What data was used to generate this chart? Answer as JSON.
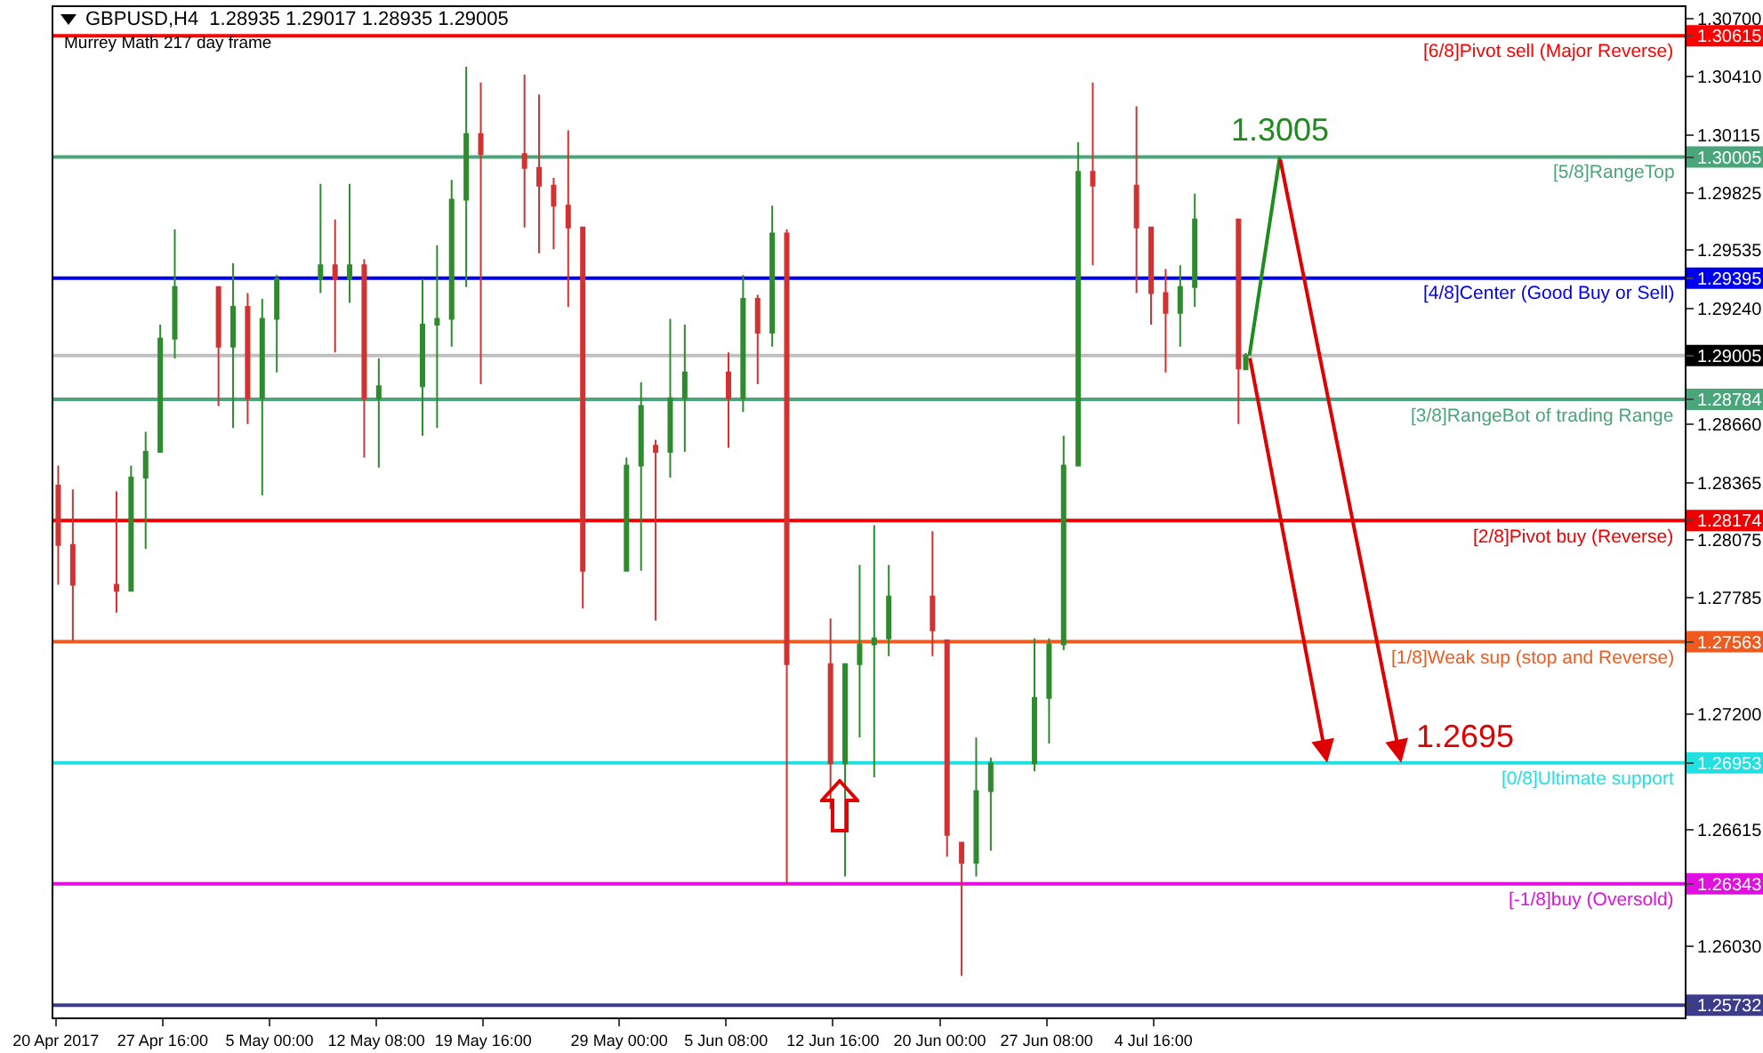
{
  "chart_data": {
    "type": "candlestick",
    "title": "GBPUSD,H4  1.28935 1.29017 1.28935 1.29005",
    "subtitle": "Murrey Math 217 day frame",
    "x": [
      "2017-04-20T12:00",
      "2017-04-21T12:00",
      "2017-04-24T12:00",
      "2017-04-25T12:00",
      "2017-04-26T12:00",
      "2017-04-27T12:00",
      "2017-04-28T12:00",
      "2017-05-01T12:00",
      "2017-05-02T12:00",
      "2017-05-03T12:00",
      "2017-05-04T12:00",
      "2017-05-05T12:00",
      "2017-05-08T12:00",
      "2017-05-09T12:00",
      "2017-05-10T12:00",
      "2017-05-11T12:00",
      "2017-05-12T12:00",
      "2017-05-15T12:00",
      "2017-05-16T12:00",
      "2017-05-17T12:00",
      "2017-05-18T12:00",
      "2017-05-19T12:00",
      "2017-05-22T12:00",
      "2017-05-23T12:00",
      "2017-05-24T12:00",
      "2017-05-25T12:00",
      "2017-05-26T12:00",
      "2017-05-29T12:00",
      "2017-05-30T12:00",
      "2017-05-31T12:00",
      "2017-06-01T12:00",
      "2017-06-02T12:00",
      "2017-06-05T12:00",
      "2017-06-06T12:00",
      "2017-06-07T12:00",
      "2017-06-08T12:00",
      "2017-06-09T12:00",
      "2017-06-12T12:00",
      "2017-06-13T12:00",
      "2017-06-14T12:00",
      "2017-06-15T12:00",
      "2017-06-16T12:00",
      "2017-06-19T12:00",
      "2017-06-20T12:00",
      "2017-06-21T12:00",
      "2017-06-22T12:00",
      "2017-06-23T12:00",
      "2017-06-26T12:00",
      "2017-06-27T12:00",
      "2017-06-28T12:00",
      "2017-06-29T12:00",
      "2017-06-30T12:00",
      "2017-07-03T12:00",
      "2017-07-04T12:00",
      "2017-07-05T12:00",
      "2017-07-06T12:00",
      "2017-07-07T12:00",
      "2017-07-10T12:00",
      "2017-07-11T00:00"
    ],
    "ohlc": [
      [
        1.2835,
        1.2845,
        1.2785,
        1.2805
      ],
      [
        1.2805,
        1.2833,
        1.2757,
        1.2785
      ],
      [
        1.2785,
        1.2832,
        1.2771,
        1.2782
      ],
      [
        1.2782,
        1.2845,
        1.2782,
        1.2839
      ],
      [
        1.2839,
        1.2862,
        1.2803,
        1.2852
      ],
      [
        1.2852,
        1.2916,
        1.2852,
        1.2909
      ],
      [
        1.2909,
        1.2964,
        1.2899,
        1.2935
      ],
      [
        1.2935,
        1.2935,
        1.2875,
        1.2905
      ],
      [
        1.2905,
        1.2947,
        1.2864,
        1.2925
      ],
      [
        1.2925,
        1.2932,
        1.2866,
        1.2879
      ],
      [
        1.2879,
        1.2929,
        1.283,
        1.2919
      ],
      [
        1.2919,
        1.2941,
        1.2892,
        1.2939
      ],
      [
        1.2939,
        1.2987,
        1.2932,
        1.2946
      ],
      [
        1.2946,
        1.2969,
        1.2902,
        1.2939
      ],
      [
        1.2939,
        1.2987,
        1.2927,
        1.2946
      ],
      [
        1.2946,
        1.2949,
        1.2849,
        1.2879
      ],
      [
        1.2879,
        1.2899,
        1.2844,
        1.2885
      ],
      [
        1.2885,
        1.2939,
        1.286,
        1.2916
      ],
      [
        1.2916,
        1.2956,
        1.2864,
        1.2919
      ],
      [
        1.2919,
        1.2989,
        1.2905,
        1.2979
      ],
      [
        1.2979,
        1.3046,
        1.2935,
        1.3012
      ],
      [
        1.3012,
        1.3038,
        1.2886,
        1.3002
      ],
      [
        1.3002,
        1.3042,
        1.2965,
        1.2995
      ],
      [
        1.2995,
        1.3032,
        1.2952,
        1.2986
      ],
      [
        1.2986,
        1.299,
        1.2954,
        1.2976
      ],
      [
        1.2976,
        1.3014,
        1.2925,
        1.2965
      ],
      [
        1.2965,
        1.2965,
        1.2773,
        1.2792
      ],
      [
        1.2792,
        1.2849,
        1.2792,
        1.2845
      ],
      [
        1.2845,
        1.2887,
        1.2792,
        1.2875
      ],
      [
        1.2855,
        1.2858,
        1.2767,
        1.2852
      ],
      [
        1.2852,
        1.2919,
        1.2839,
        1.2879
      ],
      [
        1.2879,
        1.2916,
        1.2852,
        1.2892
      ],
      [
        1.2892,
        1.2902,
        1.2854,
        1.2879
      ],
      [
        1.2879,
        1.2941,
        1.2872,
        1.2929
      ],
      [
        1.2929,
        1.2931,
        1.2886,
        1.2912
      ],
      [
        1.2912,
        1.2976,
        1.2905,
        1.2962
      ],
      [
        1.2962,
        1.2964,
        1.2634,
        1.2745
      ],
      [
        1.2745,
        1.2768,
        1.2672,
        1.2695
      ],
      [
        1.2695,
        1.2745,
        1.2638,
        1.2745
      ],
      [
        1.2745,
        1.2795,
        1.2708,
        1.2755
      ],
      [
        1.2755,
        1.2815,
        1.2688,
        1.2758
      ],
      [
        1.2758,
        1.2795,
        1.2749,
        1.2779
      ],
      [
        1.2779,
        1.2812,
        1.2749,
        1.2762
      ],
      [
        1.2757,
        1.2757,
        1.2648,
        1.2659
      ],
      [
        1.2655,
        1.2655,
        1.2588,
        1.2645
      ],
      [
        1.2645,
        1.2708,
        1.2638,
        1.2681
      ],
      [
        1.2681,
        1.2698,
        1.2651,
        1.2695
      ],
      [
        1.2695,
        1.2758,
        1.2691,
        1.2728
      ],
      [
        1.2728,
        1.2758,
        1.2705,
        1.2755
      ],
      [
        1.2755,
        1.286,
        1.2752,
        1.2845
      ],
      [
        1.2845,
        1.3008,
        1.2845,
        1.2993
      ],
      [
        1.2993,
        1.3038,
        1.2946,
        1.2986
      ],
      [
        1.2986,
        1.3026,
        1.2932,
        1.2965
      ],
      [
        1.2965,
        1.2965,
        1.2916,
        1.2932
      ],
      [
        1.2932,
        1.2944,
        1.2892,
        1.2922
      ],
      [
        1.2922,
        1.2946,
        1.2905,
        1.2935
      ],
      [
        1.2935,
        1.2982,
        1.2925,
        1.2969
      ],
      [
        1.2969,
        1.2969,
        1.2866,
        1.2894
      ],
      [
        1.28935,
        1.29017,
        1.28935,
        1.29005
      ]
    ],
    "colors": [
      "#d23232",
      "#d23232",
      "#d23232",
      "#2e8b2e",
      "#2e8b2e",
      "#2e8b2e",
      "#2e8b2e",
      "#d23232",
      "#2e8b2e",
      "#d23232",
      "#2e8b2e",
      "#2e8b2e",
      "#2e8b2e",
      "#d23232",
      "#2e8b2e",
      "#d23232",
      "#2e8b2e",
      "#2e8b2e",
      "#2e8b2e",
      "#2e8b2e",
      "#2e8b2e",
      "#d23232",
      "#d23232",
      "#d23232",
      "#d23232",
      "#d23232",
      "#d23232",
      "#2e8b2e",
      "#2e8b2e",
      "#d23232",
      "#2e8b2e",
      "#2e8b2e",
      "#d23232",
      "#2e8b2e",
      "#d23232",
      "#2e8b2e",
      "#d23232",
      "#d23232",
      "#2e8b2e",
      "#2e8b2e",
      "#2e8b2e",
      "#2e8b2e",
      "#d23232",
      "#d23232",
      "#d23232",
      "#2e8b2e",
      "#2e8b2e",
      "#2e8b2e",
      "#2e8b2e",
      "#2e8b2e",
      "#2e8b2e",
      "#d23232",
      "#d23232",
      "#d23232",
      "#d23232",
      "#2e8b2e",
      "#2e8b2e",
      "#d23232",
      "#2e8b2e"
    ],
    "series": [
      {
        "type": "line",
        "color": "#1e8c1e",
        "x": [
          "2017-07-11T06:00",
          "2017-07-13T08:00"
        ],
        "values": [
          1.29005,
          1.30005
        ]
      }
    ],
    "annotations": [
      {
        "text": "1.3005",
        "x": "2017-07-13T08:00",
        "y": 1.30005
      },
      {
        "text": "1.2695",
        "x": "2017-07-21T16:00",
        "y": 1.26953
      }
    ],
    "ref_lines": [
      {
        "axis": "y",
        "value": 1.30615,
        "label": "[6/8]Pivot sell (Major Reverse)",
        "color": "#ff0000"
      },
      {
        "axis": "y",
        "value": 1.30005,
        "label": "[5/8]RangeTop",
        "color": "#4aa57a"
      },
      {
        "axis": "y",
        "value": 1.29395,
        "label": "[4/8]Center (Good Buy or Sell)",
        "color": "#0000ee"
      },
      {
        "axis": "y",
        "value": 1.29005,
        "label": null,
        "color": "#c0c0c0"
      },
      {
        "axis": "y",
        "value": 1.28784,
        "label": "[3/8]RangeBot of trading Range",
        "color": "#4aa57a"
      },
      {
        "axis": "y",
        "value": 1.28174,
        "label": "[2/8]Pivot buy (Reverse)",
        "color": "#ee0000"
      },
      {
        "axis": "y",
        "value": 1.27563,
        "label": "[1/8]Weak sup (stop and Reverse)",
        "color": "#f05a1e"
      },
      {
        "axis": "y",
        "value": 1.26953,
        "label": "[0/8]Ultimate support",
        "color": "#22e0e0"
      },
      {
        "axis": "y",
        "value": 1.26343,
        "label": "[-1/8]buy (Oversold)",
        "color": "#e010e0"
      },
      {
        "axis": "y",
        "value": 1.25732,
        "label": null,
        "color": "#3c3c8c"
      }
    ],
    "xlim": [
      "2017-04-20T04:00",
      "2017-08-10T03:00"
    ],
    "xticks": [
      {
        "value": "2017-04-20T08:00",
        "label": "20 Apr 2017"
      },
      {
        "value": "2017-04-27T16:00",
        "label": "27 Apr 16:00"
      },
      {
        "value": "2017-05-05T00:00",
        "label": "5 May 00:00"
      },
      {
        "value": "2017-05-12T08:00",
        "label": "12 May 08:00"
      },
      {
        "value": "2017-05-19T16:00",
        "label": "19 May 16:00"
      },
      {
        "value": "2017-05-29T00:00",
        "label": "29 May 00:00"
      },
      {
        "value": "2017-06-05T08:00",
        "label": "5 Jun 08:00"
      },
      {
        "value": "2017-06-12T16:00",
        "label": "12 Jun 16:00"
      },
      {
        "value": "2017-06-20T00:00",
        "label": "20 Jun 00:00"
      },
      {
        "value": "2017-06-27T08:00",
        "label": "27 Jun 08:00"
      },
      {
        "value": "2017-07-04T16:00",
        "label": "4 Jul 16:00"
      }
    ],
    "ylim": [
      1.2567,
      1.3076
    ],
    "yticks": [
      {
        "value": 1.307,
        "label": "1.30700"
      },
      1.30615,
      {
        "value": 1.3041,
        "label": "1.30410"
      },
      1.30115,
      1.30005,
      1.29825,
      1.29535,
      1.29395,
      {
        "value": 1.2924,
        "label": "1.29240"
      },
      1.29005,
      1.28784,
      {
        "value": 1.2866,
        "label": "1.28660"
      },
      1.28365,
      1.28174,
      1.28075,
      1.27785,
      1.27563,
      {
        "value": 1.272,
        "label": "1.27200"
      },
      1.26953,
      1.26615,
      1.26343,
      {
        "value": 1.2603,
        "label": "1.26030"
      },
      1.25732
    ],
    "grid": false
  }
}
